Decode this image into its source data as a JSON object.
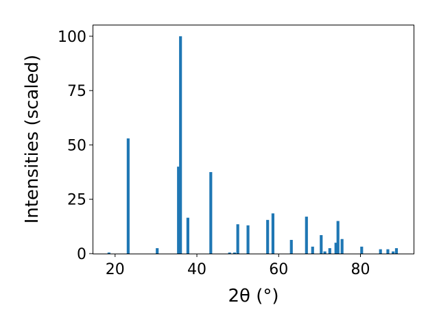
{
  "chart_data": {
    "type": "bar",
    "title": "",
    "xlabel": "2θ (°)",
    "ylabel": "Intensities (scaled)",
    "xlim": [
      14.5,
      93
    ],
    "ylim": [
      0,
      105
    ],
    "xticks": [
      20,
      40,
      60,
      80
    ],
    "yticks": [
      0,
      25,
      50,
      75,
      100
    ],
    "grid": false,
    "bar_color": "#1f77b4",
    "bar_width_deg": 0.7,
    "peaks": [
      {
        "x": 18.5,
        "y": 0.5
      },
      {
        "x": 23.2,
        "y": 53
      },
      {
        "x": 30.3,
        "y": 2.5
      },
      {
        "x": 35.5,
        "y": 40
      },
      {
        "x": 36.0,
        "y": 100
      },
      {
        "x": 37.8,
        "y": 16.5
      },
      {
        "x": 43.4,
        "y": 37.5
      },
      {
        "x": 48.0,
        "y": 0.5
      },
      {
        "x": 49.2,
        "y": 0.5
      },
      {
        "x": 50.0,
        "y": 13.5
      },
      {
        "x": 52.5,
        "y": 13
      },
      {
        "x": 57.3,
        "y": 15.5
      },
      {
        "x": 58.6,
        "y": 18.5
      },
      {
        "x": 63.1,
        "y": 6.3
      },
      {
        "x": 66.8,
        "y": 17
      },
      {
        "x": 68.3,
        "y": 3.2
      },
      {
        "x": 70.4,
        "y": 8.5
      },
      {
        "x": 71.3,
        "y": 1
      },
      {
        "x": 72.5,
        "y": 2.5
      },
      {
        "x": 74.0,
        "y": 5
      },
      {
        "x": 74.5,
        "y": 15
      },
      {
        "x": 75.5,
        "y": 6.7
      },
      {
        "x": 80.3,
        "y": 3.2
      },
      {
        "x": 84.9,
        "y": 2
      },
      {
        "x": 86.7,
        "y": 2
      },
      {
        "x": 88.0,
        "y": 1
      },
      {
        "x": 88.8,
        "y": 2.5
      }
    ]
  }
}
